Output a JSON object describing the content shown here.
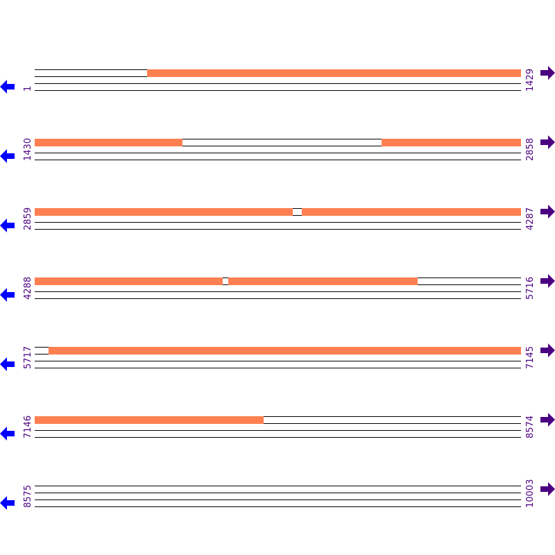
{
  "colors": {
    "segment": "#ff7f50",
    "line": "#000000",
    "label": "#4b0082",
    "left_arrow": "#0000ff",
    "right_arrow": "#4b0082"
  },
  "icons": {
    "left": "arrow-left-icon",
    "right": "arrow-right-icon"
  },
  "rows": [
    {
      "start": "1",
      "end": "1429",
      "s": 1,
      "e": 1429,
      "segments": [
        [
          331,
          1429
        ]
      ]
    },
    {
      "start": "1430",
      "end": "2858",
      "s": 1430,
      "e": 2858,
      "segments": [
        [
          1430,
          1864
        ],
        [
          2449,
          2858
        ]
      ]
    },
    {
      "start": "2859",
      "end": "4287",
      "s": 2859,
      "e": 4287,
      "segments": [
        [
          2859,
          3617
        ],
        [
          3644,
          4287
        ]
      ]
    },
    {
      "start": "4288",
      "end": "5716",
      "s": 4288,
      "e": 5716,
      "segments": [
        [
          4288,
          4840
        ],
        [
          4857,
          5413
        ]
      ]
    },
    {
      "start": "5717",
      "end": "7145",
      "s": 5717,
      "e": 7145,
      "segments": [
        [
          5758,
          7145
        ]
      ]
    },
    {
      "start": "7146",
      "end": "8574",
      "s": 7146,
      "e": 8574,
      "segments": [
        [
          7146,
          7817
        ]
      ]
    },
    {
      "start": "8575",
      "end": "10003",
      "s": 8575,
      "e": 10003,
      "segments": []
    }
  ]
}
